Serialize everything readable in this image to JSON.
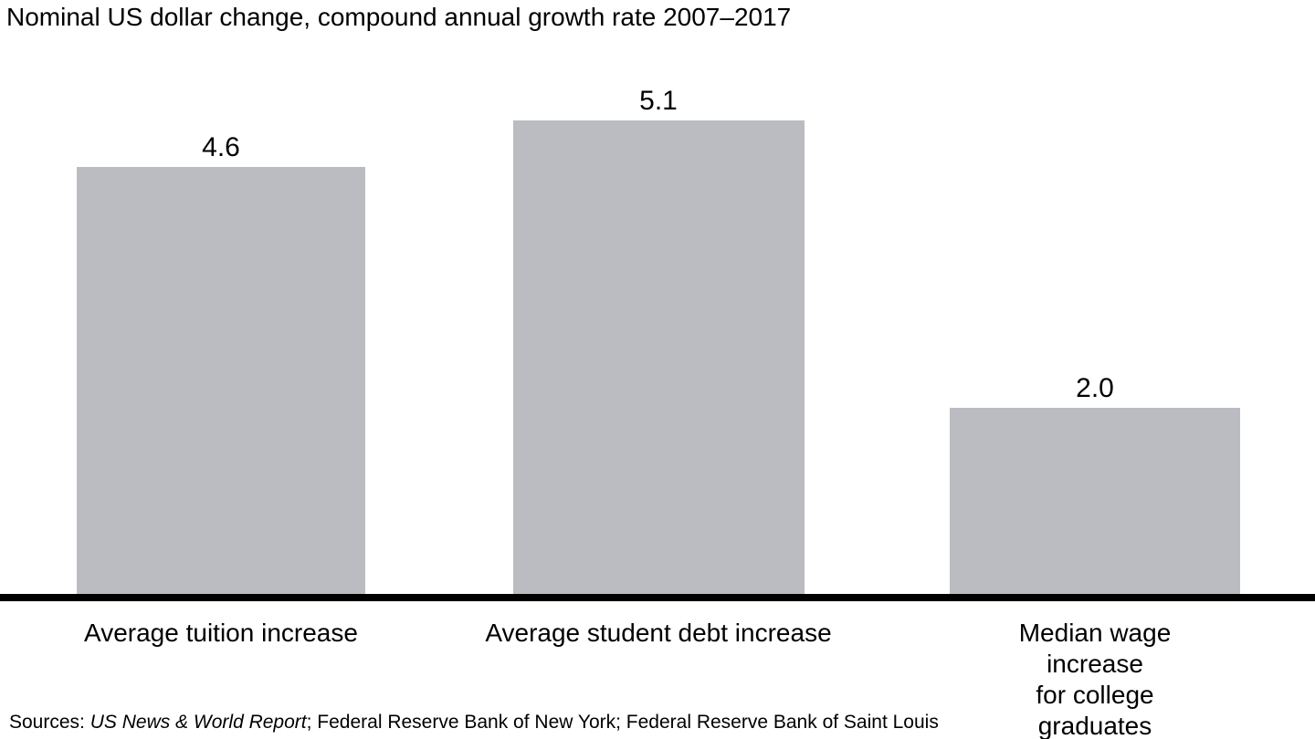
{
  "chart_data": {
    "type": "bar",
    "title": "Nominal US dollar change, compound annual growth rate 2007–2017",
    "categories": [
      "Average tuition increase",
      "Average student debt increase",
      "Median wage increase\nfor college graduates"
    ],
    "values": [
      4.6,
      5.1,
      2.0
    ],
    "value_labels": [
      "4.6",
      "5.1",
      "2.0"
    ],
    "xlabel": "",
    "ylabel": "",
    "ylim": [
      0,
      5.6
    ],
    "grid": false,
    "legend_position": "none",
    "bar_color": "#bbbcc1",
    "axis_color": "#000000",
    "sources": {
      "segments": [
        {
          "text": "Sources: ",
          "italic": false
        },
        {
          "text": "US News & World Report",
          "italic": true
        },
        {
          "text": "; Federal Reserve Bank of New York; Federal Reserve Bank of Saint Louis",
          "italic": false
        }
      ]
    }
  }
}
